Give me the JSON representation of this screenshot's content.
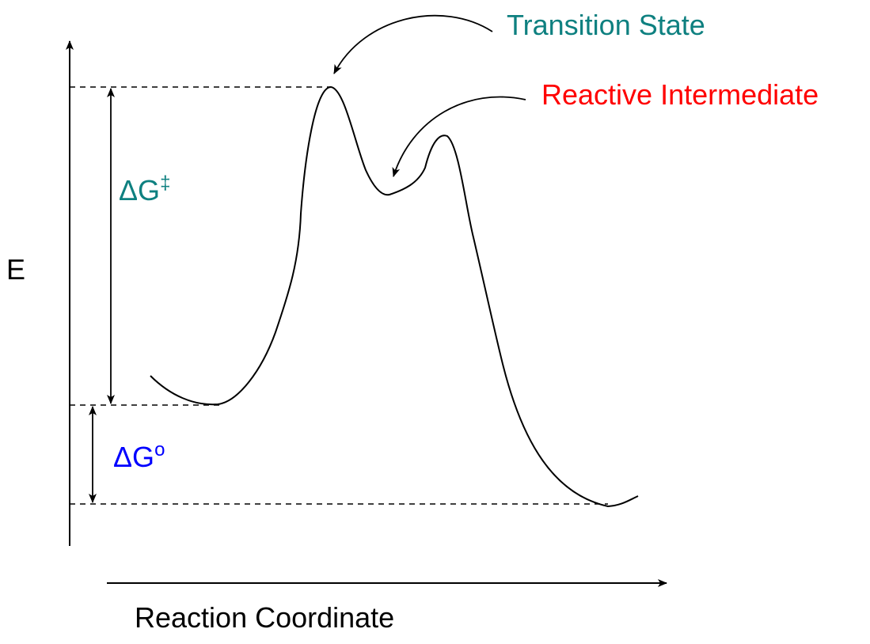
{
  "labels": {
    "transition_state": "Transition State",
    "reactive_intermediate": "Reactive Intermediate",
    "activation_delta": "ΔG",
    "activation_superscript": "‡",
    "standard_delta": "ΔG",
    "standard_superscript": "o",
    "y_axis": "E",
    "x_axis": "Reaction Coordinate"
  },
  "colors": {
    "transition_state": "#0e8080",
    "reactive_intermediate": "#ff0000",
    "activation_energy": "#0e8080",
    "standard_energy": "#0000ff",
    "line": "#000000"
  }
}
